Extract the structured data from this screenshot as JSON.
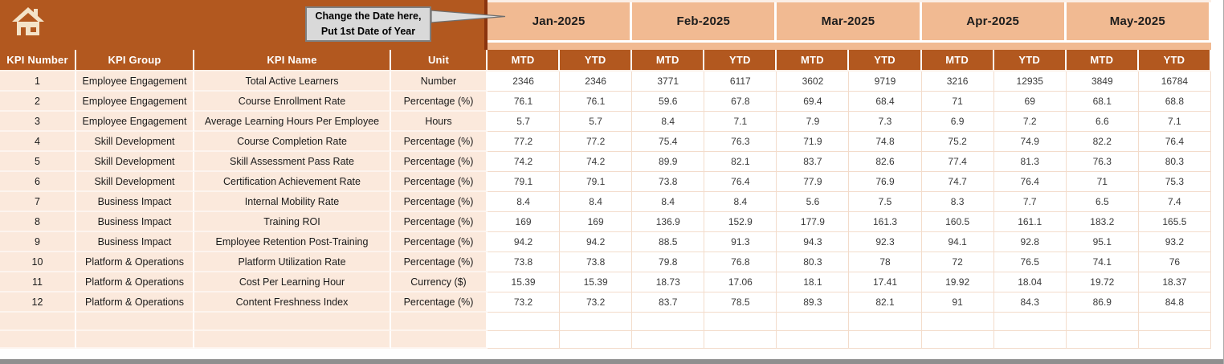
{
  "banner": {
    "callout_line1": "Change the Date here,",
    "callout_line2": "Put 1st Date of Year"
  },
  "months": [
    "Jan-2025",
    "Feb-2025",
    "Mar-2025",
    "Apr-2025",
    "May-2025"
  ],
  "period_labels": {
    "mtd": "MTD",
    "ytd": "YTD"
  },
  "columns": [
    "KPI Number",
    "KPI Group",
    "KPI Name",
    "Unit"
  ],
  "icons": {
    "home": "home-icon"
  },
  "colors": {
    "banner_brown": "#B2581F",
    "maroon_divider": "#8A340E",
    "month_peach": "#F1BA92",
    "row_peach": "#FBE9DC",
    "cell_border": "#F3DCCB",
    "callout_fill": "#D9D9D9",
    "callout_border": "#7F7F7F",
    "scrollbar_gray": "#8F8F8F"
  },
  "rows": [
    {
      "number": "1",
      "group": "Employee Engagement",
      "name": "Total Active Learners",
      "unit": "Number",
      "values": [
        "2346",
        "2346",
        "3771",
        "6117",
        "3602",
        "9719",
        "3216",
        "12935",
        "3849",
        "16784"
      ]
    },
    {
      "number": "2",
      "group": "Employee Engagement",
      "name": "Course Enrollment Rate",
      "unit": "Percentage (%)",
      "values": [
        "76.1",
        "76.1",
        "59.6",
        "67.8",
        "69.4",
        "68.4",
        "71",
        "69",
        "68.1",
        "68.8"
      ]
    },
    {
      "number": "3",
      "group": "Employee Engagement",
      "name": "Average Learning Hours Per Employee",
      "unit": "Hours",
      "values": [
        "5.7",
        "5.7",
        "8.4",
        "7.1",
        "7.9",
        "7.3",
        "6.9",
        "7.2",
        "6.6",
        "7.1"
      ]
    },
    {
      "number": "4",
      "group": "Skill Development",
      "name": "Course Completion Rate",
      "unit": "Percentage (%)",
      "values": [
        "77.2",
        "77.2",
        "75.4",
        "76.3",
        "71.9",
        "74.8",
        "75.2",
        "74.9",
        "82.2",
        "76.4"
      ]
    },
    {
      "number": "5",
      "group": "Skill Development",
      "name": "Skill Assessment Pass Rate",
      "unit": "Percentage (%)",
      "values": [
        "74.2",
        "74.2",
        "89.9",
        "82.1",
        "83.7",
        "82.6",
        "77.4",
        "81.3",
        "76.3",
        "80.3"
      ]
    },
    {
      "number": "6",
      "group": "Skill Development",
      "name": "Certification Achievement Rate",
      "unit": "Percentage (%)",
      "values": [
        "79.1",
        "79.1",
        "73.8",
        "76.4",
        "77.9",
        "76.9",
        "74.7",
        "76.4",
        "71",
        "75.3"
      ]
    },
    {
      "number": "7",
      "group": "Business Impact",
      "name": "Internal Mobility Rate",
      "unit": "Percentage (%)",
      "values": [
        "8.4",
        "8.4",
        "8.4",
        "8.4",
        "5.6",
        "7.5",
        "8.3",
        "7.7",
        "6.5",
        "7.4"
      ]
    },
    {
      "number": "8",
      "group": "Business Impact",
      "name": "Training ROI",
      "unit": "Percentage (%)",
      "values": [
        "169",
        "169",
        "136.9",
        "152.9",
        "177.9",
        "161.3",
        "160.5",
        "161.1",
        "183.2",
        "165.5"
      ]
    },
    {
      "number": "9",
      "group": "Business Impact",
      "name": "Employee Retention Post-Training",
      "unit": "Percentage (%)",
      "values": [
        "94.2",
        "94.2",
        "88.5",
        "91.3",
        "94.3",
        "92.3",
        "94.1",
        "92.8",
        "95.1",
        "93.2"
      ]
    },
    {
      "number": "10",
      "group": "Platform & Operations",
      "name": "Platform Utilization Rate",
      "unit": "Percentage (%)",
      "values": [
        "73.8",
        "73.8",
        "79.8",
        "76.8",
        "80.3",
        "78",
        "72",
        "76.5",
        "74.1",
        "76"
      ]
    },
    {
      "number": "11",
      "group": "Platform & Operations",
      "name": "Cost Per Learning Hour",
      "unit": "Currency ($)",
      "values": [
        "15.39",
        "15.39",
        "18.73",
        "17.06",
        "18.1",
        "17.41",
        "19.92",
        "18.04",
        "19.72",
        "18.37"
      ]
    },
    {
      "number": "12",
      "group": "Platform & Operations",
      "name": "Content Freshness Index",
      "unit": "Percentage (%)",
      "values": [
        "73.2",
        "73.2",
        "83.7",
        "78.5",
        "89.3",
        "82.1",
        "91",
        "84.3",
        "86.9",
        "84.8"
      ]
    }
  ],
  "empty_row_count": 2
}
